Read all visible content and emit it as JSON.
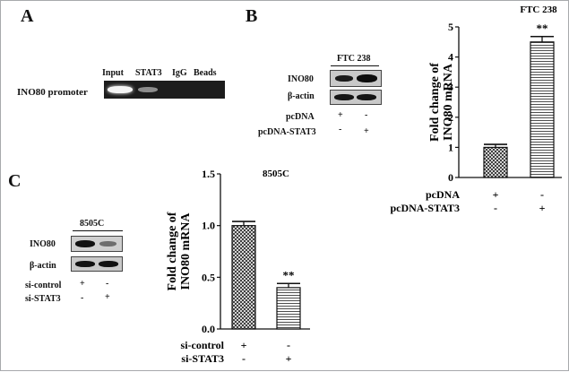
{
  "panel_a": {
    "letter": "A",
    "lanes": [
      "Input",
      "STAT3",
      "IgG",
      "Beads"
    ],
    "row_label": "INO80  promoter"
  },
  "panel_b": {
    "letter": "B",
    "blot_title": "FTC 238",
    "blot_rows": [
      "INO80",
      "β-actin"
    ],
    "treatment_rows": [
      {
        "label": "pcDNA",
        "signs": [
          "+",
          "-"
        ]
      },
      {
        "label": "pcDNA-STAT3",
        "signs": [
          "-",
          "+"
        ]
      }
    ]
  },
  "panel_c": {
    "letter": "C",
    "blot_title": "8505C",
    "blot_rows": [
      "INO80",
      "β-actin"
    ],
    "treatment_rows": [
      {
        "label": "si-control",
        "signs": [
          "+",
          "-"
        ]
      },
      {
        "label": "si-STAT3",
        "signs": [
          "-",
          "+"
        ]
      }
    ]
  },
  "chart_data": [
    {
      "type": "bar",
      "title": "FTC 238",
      "ylabel": "Fold change of INO80 mRNA",
      "ylim": [
        0,
        5
      ],
      "yticks": [
        "0",
        "1",
        "2",
        "3",
        "4",
        "5"
      ],
      "categories": [
        "pcDNA",
        "pcDNA-STAT3"
      ],
      "values": [
        1.0,
        4.5
      ],
      "errors": [
        0.1,
        0.18
      ],
      "significance": [
        "",
        "**"
      ],
      "treatment_rows": [
        {
          "label": "pcDNA",
          "signs": [
            "+",
            "-"
          ]
        },
        {
          "label": "pcDNA-STAT3",
          "signs": [
            "-",
            "+"
          ]
        }
      ]
    },
    {
      "type": "bar",
      "title": "8505C",
      "ylabel": "Fold change of INO80 mRNA",
      "ylim": [
        0,
        1.5
      ],
      "yticks": [
        "0.0",
        "0.5",
        "1.0",
        "1.5"
      ],
      "categories": [
        "si-control",
        "si-STAT3"
      ],
      "values": [
        1.0,
        0.4
      ],
      "errors": [
        0.04,
        0.04
      ],
      "significance": [
        "",
        "**"
      ],
      "treatment_rows": [
        {
          "label": "si-control",
          "signs": [
            "+",
            "-"
          ]
        },
        {
          "label": "si-STAT3",
          "signs": [
            "-",
            "+"
          ]
        }
      ]
    }
  ]
}
